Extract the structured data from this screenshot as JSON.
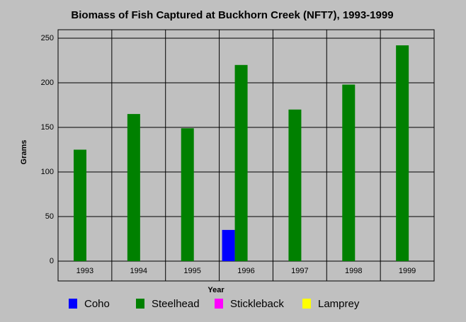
{
  "chart_data": {
    "type": "bar",
    "title": "Biomass of Fish Captured at Buckhorn Creek (NFT7), 1993-1999",
    "x_label": "Year",
    "y_label": "Grams",
    "categories": [
      "1993",
      "1994",
      "1995",
      "1996",
      "1997",
      "1998",
      "1999"
    ],
    "series": [
      {
        "name": "Coho",
        "color": "#0000ff",
        "values": [
          0,
          0,
          0,
          35,
          0,
          0,
          0
        ]
      },
      {
        "name": "Steelhead",
        "color": "#008000",
        "values": [
          125,
          165,
          149,
          220,
          170,
          198,
          242
        ]
      },
      {
        "name": "Stickleback",
        "color": "#ff00ff",
        "values": [
          0,
          0,
          0,
          0,
          0,
          0,
          0
        ]
      },
      {
        "name": "Lamprey",
        "color": "#ffff00",
        "values": [
          0,
          0,
          0,
          0,
          0,
          0,
          0
        ]
      }
    ],
    "ylim": [
      0,
      250
    ],
    "yticks": [
      0,
      50,
      100,
      150,
      200,
      250
    ],
    "grid": true
  }
}
